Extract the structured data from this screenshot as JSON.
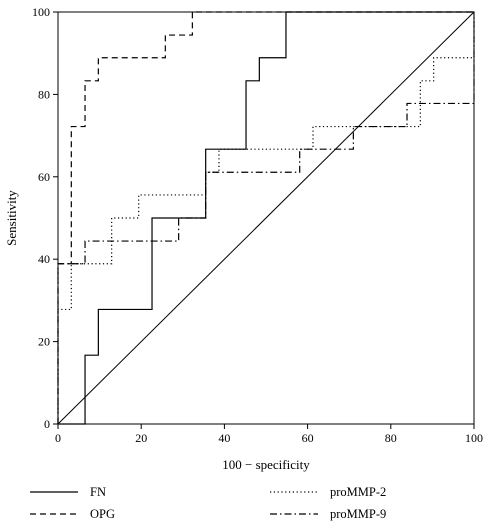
{
  "chart_data": {
    "type": "line",
    "title": "",
    "xlabel": "100 − specificity",
    "ylabel": "Sensitivity",
    "xlim": [
      0,
      100
    ],
    "ylim": [
      0,
      100
    ],
    "x_ticks": [
      "0",
      "20",
      "40",
      "60",
      "80",
      "100"
    ],
    "y_ticks": [
      "0",
      "20",
      "40",
      "60",
      "80",
      "100"
    ],
    "grid": false,
    "legend_position": "bottom",
    "diagonal_reference": true,
    "series": [
      {
        "name": "FN",
        "line_style": "solid",
        "points": [
          [
            0,
            0
          ],
          [
            6.5,
            0
          ],
          [
            6.5,
            16.7
          ],
          [
            9.7,
            16.7
          ],
          [
            9.7,
            27.8
          ],
          [
            22.6,
            27.8
          ],
          [
            22.6,
            50
          ],
          [
            32.3,
            50
          ],
          [
            32.3,
            50
          ],
          [
            35.5,
            50
          ],
          [
            35.5,
            66.7
          ],
          [
            45.2,
            66.7
          ],
          [
            45.2,
            83.3
          ],
          [
            48.4,
            83.3
          ],
          [
            48.4,
            88.9
          ],
          [
            54.8,
            88.9
          ],
          [
            54.8,
            100
          ],
          [
            100,
            100
          ]
        ]
      },
      {
        "name": "OPG",
        "line_style": "dashed",
        "points": [
          [
            0,
            0
          ],
          [
            0,
            38.9
          ],
          [
            3.2,
            38.9
          ],
          [
            3.2,
            72.2
          ],
          [
            6.5,
            72.2
          ],
          [
            6.5,
            83.3
          ],
          [
            9.7,
            83.3
          ],
          [
            9.7,
            88.9
          ],
          [
            25.8,
            88.9
          ],
          [
            25.8,
            94.4
          ],
          [
            32.3,
            94.4
          ],
          [
            32.3,
            100
          ],
          [
            100,
            100
          ]
        ]
      },
      {
        "name": "proMMP-2",
        "line_style": "dotted",
        "points": [
          [
            0,
            0
          ],
          [
            0,
            27.8
          ],
          [
            3.2,
            27.8
          ],
          [
            3.2,
            38.9
          ],
          [
            6.5,
            38.9
          ],
          [
            6.5,
            38.9
          ],
          [
            12.9,
            38.9
          ],
          [
            12.9,
            50
          ],
          [
            19.4,
            50
          ],
          [
            19.4,
            55.6
          ],
          [
            35.5,
            55.6
          ],
          [
            35.5,
            61.1
          ],
          [
            38.7,
            61.1
          ],
          [
            38.7,
            66.7
          ],
          [
            61.3,
            66.7
          ],
          [
            61.3,
            72.2
          ],
          [
            87.1,
            72.2
          ],
          [
            87.1,
            83.3
          ],
          [
            90.3,
            83.3
          ],
          [
            90.3,
            88.9
          ],
          [
            100,
            88.9
          ],
          [
            100,
            100
          ]
        ]
      },
      {
        "name": "proMMP-9",
        "line_style": "dashdot",
        "points": [
          [
            0,
            0
          ],
          [
            0,
            38.9
          ],
          [
            6.5,
            38.9
          ],
          [
            6.5,
            44.4
          ],
          [
            29,
            44.4
          ],
          [
            29,
            50
          ],
          [
            35.5,
            50
          ],
          [
            35.5,
            61.1
          ],
          [
            58.1,
            61.1
          ],
          [
            58.1,
            66.7
          ],
          [
            71,
            66.7
          ],
          [
            71,
            72.2
          ],
          [
            83.9,
            72.2
          ],
          [
            83.9,
            77.8
          ],
          [
            100,
            77.8
          ],
          [
            100,
            100
          ]
        ]
      }
    ]
  }
}
